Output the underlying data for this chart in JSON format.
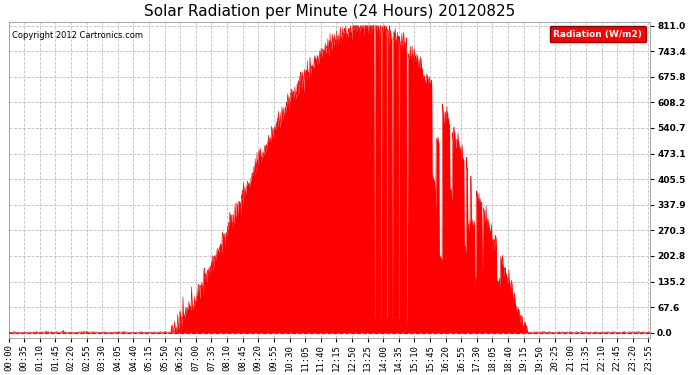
{
  "title": "Solar Radiation per Minute (24 Hours) 20120825",
  "ylabel": "Radiation (W/m2)",
  "copyright": "Copyright 2012 Cartronics.com",
  "yticks": [
    0.0,
    67.6,
    135.2,
    202.8,
    270.3,
    337.9,
    405.5,
    473.1,
    540.7,
    608.2,
    675.8,
    743.4,
    811.0
  ],
  "ymax": 811.0,
  "ymin": 0.0,
  "fill_color": "#FF0000",
  "line_color": "#FF0000",
  "background_color": "#FFFFFF",
  "grid_color": "#C0C0C0",
  "legend_text": "Radiation (W/m2)",
  "title_fontsize": 11,
  "tick_fontsize": 6.5,
  "x_tick_interval": 35
}
